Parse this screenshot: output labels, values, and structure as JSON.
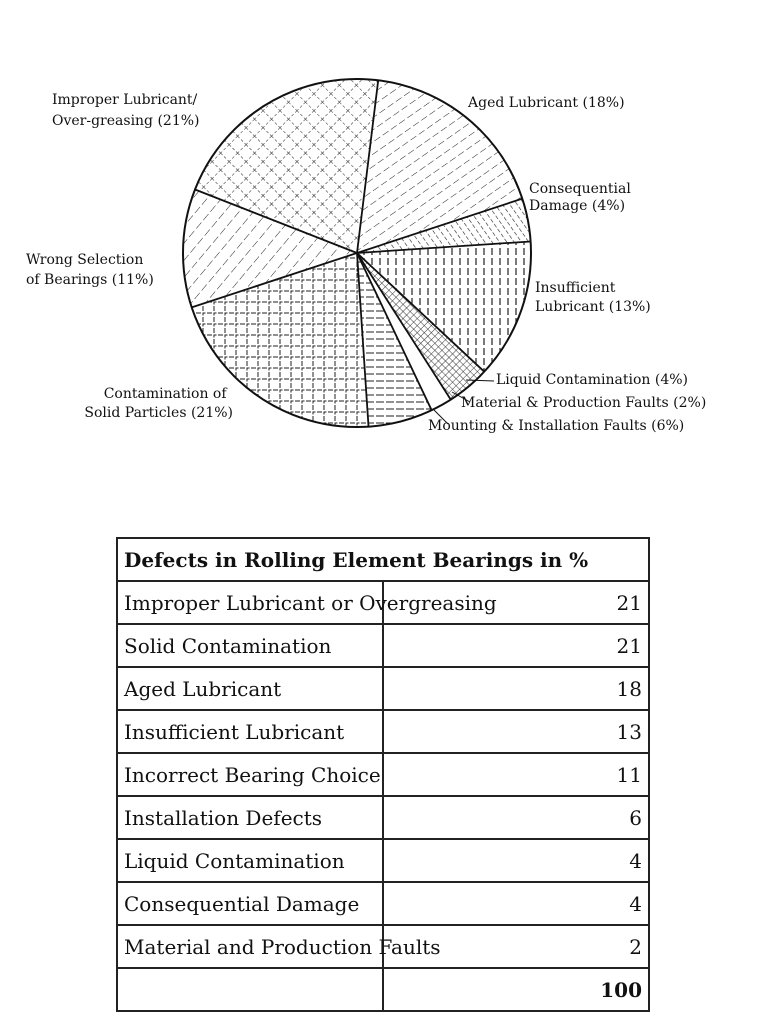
{
  "chart_data": {
    "type": "pie",
    "slices": [
      {
        "label": "Aged Lubricant (18%)",
        "value": 18,
        "pattern": "dashed-diagonal"
      },
      {
        "label": "Consequential Damage (4%)",
        "value": 4,
        "pattern": "hatched"
      },
      {
        "label": "Insufficient Lubricant (13%)",
        "value": 13,
        "pattern": "vertical-dashed"
      },
      {
        "label": "Liquid Contamination (4%)",
        "value": 4,
        "pattern": "fine-crosshatch"
      },
      {
        "label": "Material & Production Faults (2%)",
        "value": 2,
        "pattern": "blank"
      },
      {
        "label": "Mounting & Installation Faults (6%)",
        "value": 6,
        "pattern": "dashed-horizontal"
      },
      {
        "label": "Contamination of Solid Particles (21%)",
        "value": 21,
        "pattern": "grid"
      },
      {
        "label": "Wrong Selection of Bearings (11%)",
        "value": 11,
        "pattern": "dashed-diagonal-alt"
      },
      {
        "label": "Improper Lubricant/ Over-greasing (21%)",
        "value": 21,
        "pattern": "crosshatch"
      }
    ],
    "labels": {
      "aged": [
        "Aged Lubricant (18%)"
      ],
      "consequential": [
        "Consequential",
        "Damage (4%)"
      ],
      "insufficient": [
        "Insufficient",
        "Lubricant (13%)"
      ],
      "liquid": [
        "Liquid Contamination (4%)"
      ],
      "material": [
        "Material & Production Faults (2%)"
      ],
      "mounting": [
        "Mounting & Installation Faults (6%)"
      ],
      "solid": [
        "Contamination of",
        "Solid Particles (21%)"
      ],
      "wrong": [
        "Wrong Selection",
        "of Bearings (11%)"
      ],
      "improper": [
        "Improper Lubricant/",
        "Over-greasing (21%)"
      ]
    }
  },
  "table": {
    "title": "Defects in Rolling Element Bearings in %",
    "rows": [
      {
        "label": "Improper Lubricant or Overgreasing",
        "value": "21"
      },
      {
        "label": "Solid Contamination",
        "value": "21"
      },
      {
        "label": "Aged Lubricant",
        "value": "18"
      },
      {
        "label": "Insufficient Lubricant",
        "value": "13"
      },
      {
        "label": "Incorrect Bearing Choice",
        "value": "11"
      },
      {
        "label": "Installation Defects",
        "value": "6"
      },
      {
        "label": "Liquid Contamination",
        "value": "4"
      },
      {
        "label": "Consequential Damage",
        "value": "4"
      },
      {
        "label": "Material and Production Faults",
        "value": "2"
      }
    ],
    "total_label": "",
    "total_value": "100"
  }
}
